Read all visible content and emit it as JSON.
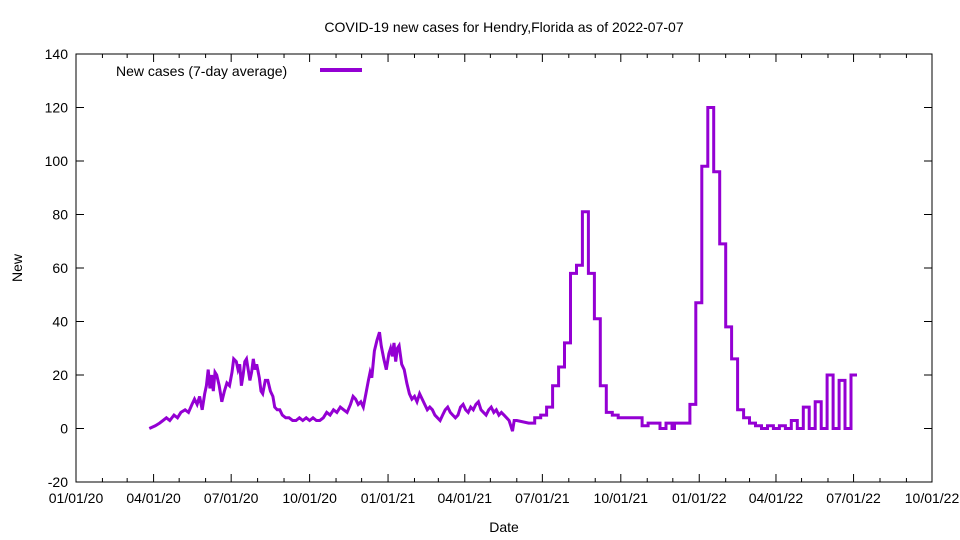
{
  "chart_data": {
    "type": "line",
    "title": "COVID-19 new cases for Hendry,Florida as of 2022-07-07",
    "xlabel": "Date",
    "ylabel": "New",
    "xlim": [
      "2020-01-01",
      "2022-10-01"
    ],
    "ylim": [
      -20,
      140
    ],
    "x_tick_labels": [
      "01/01/20",
      "04/01/20",
      "07/01/20",
      "10/01/20",
      "01/01/21",
      "04/01/21",
      "07/01/21",
      "10/01/21",
      "01/01/22",
      "04/01/22",
      "07/01/22",
      "10/01/22"
    ],
    "y_tick_labels": [
      "-20",
      "0",
      "20",
      "40",
      "60",
      "80",
      "100",
      "120",
      "140"
    ],
    "legend_position": "top-left",
    "grid": false,
    "series": [
      {
        "name": "New cases (7-day average)",
        "color": "#9400d3",
        "points": [
          [
            "2020-03-27",
            0
          ],
          [
            "2020-04-03",
            1
          ],
          [
            "2020-04-08",
            2
          ],
          [
            "2020-04-12",
            3
          ],
          [
            "2020-04-16",
            4
          ],
          [
            "2020-04-20",
            3
          ],
          [
            "2020-04-25",
            5
          ],
          [
            "2020-04-29",
            4
          ],
          [
            "2020-05-03",
            6
          ],
          [
            "2020-05-08",
            7
          ],
          [
            "2020-05-12",
            6
          ],
          [
            "2020-05-16",
            9
          ],
          [
            "2020-05-19",
            11
          ],
          [
            "2020-05-22",
            9
          ],
          [
            "2020-05-25",
            12
          ],
          [
            "2020-05-28",
            7
          ],
          [
            "2020-05-31",
            13
          ],
          [
            "2020-06-02",
            16
          ],
          [
            "2020-06-04",
            22
          ],
          [
            "2020-06-06",
            15
          ],
          [
            "2020-06-08",
            20
          ],
          [
            "2020-06-10",
            14
          ],
          [
            "2020-06-12",
            21
          ],
          [
            "2020-06-14",
            20
          ],
          [
            "2020-06-17",
            16
          ],
          [
            "2020-06-20",
            10
          ],
          [
            "2020-06-23",
            14
          ],
          [
            "2020-06-26",
            17
          ],
          [
            "2020-06-29",
            16
          ],
          [
            "2020-07-02",
            21
          ],
          [
            "2020-07-04",
            26
          ],
          [
            "2020-07-07",
            25
          ],
          [
            "2020-07-09",
            22
          ],
          [
            "2020-07-11",
            24
          ],
          [
            "2020-07-13",
            16
          ],
          [
            "2020-07-15",
            20
          ],
          [
            "2020-07-17",
            25
          ],
          [
            "2020-07-19",
            26
          ],
          [
            "2020-07-21",
            22
          ],
          [
            "2020-07-23",
            18
          ],
          [
            "2020-07-25",
            21
          ],
          [
            "2020-07-27",
            26
          ],
          [
            "2020-07-29",
            22
          ],
          [
            "2020-07-31",
            24
          ],
          [
            "2020-08-03",
            19
          ],
          [
            "2020-08-05",
            14
          ],
          [
            "2020-08-07",
            13
          ],
          [
            "2020-08-10",
            18
          ],
          [
            "2020-08-13",
            18
          ],
          [
            "2020-08-16",
            14
          ],
          [
            "2020-08-19",
            12
          ],
          [
            "2020-08-21",
            8
          ],
          [
            "2020-08-24",
            7
          ],
          [
            "2020-08-27",
            7
          ],
          [
            "2020-08-30",
            5
          ],
          [
            "2020-09-03",
            4
          ],
          [
            "2020-09-07",
            4
          ],
          [
            "2020-09-11",
            3
          ],
          [
            "2020-09-15",
            3
          ],
          [
            "2020-09-19",
            4
          ],
          [
            "2020-09-23",
            3
          ],
          [
            "2020-09-27",
            4
          ],
          [
            "2020-10-01",
            3
          ],
          [
            "2020-10-05",
            4
          ],
          [
            "2020-10-09",
            3
          ],
          [
            "2020-10-13",
            3
          ],
          [
            "2020-10-17",
            4
          ],
          [
            "2020-10-21",
            6
          ],
          [
            "2020-10-25",
            5
          ],
          [
            "2020-10-29",
            7
          ],
          [
            "2020-11-02",
            6
          ],
          [
            "2020-11-06",
            8
          ],
          [
            "2020-11-10",
            7
          ],
          [
            "2020-11-14",
            6
          ],
          [
            "2020-11-18",
            9
          ],
          [
            "2020-11-21",
            12
          ],
          [
            "2020-11-24",
            11
          ],
          [
            "2020-11-27",
            9
          ],
          [
            "2020-11-30",
            10
          ],
          [
            "2020-12-03",
            8
          ],
          [
            "2020-12-06",
            13
          ],
          [
            "2020-12-09",
            18
          ],
          [
            "2020-12-11",
            21
          ],
          [
            "2020-12-13",
            19
          ],
          [
            "2020-12-16",
            29
          ],
          [
            "2020-12-19",
            33
          ],
          [
            "2020-12-22",
            36
          ],
          [
            "2020-12-24",
            31
          ],
          [
            "2020-12-27",
            26
          ],
          [
            "2020-12-30",
            22
          ],
          [
            "2021-01-02",
            28
          ],
          [
            "2021-01-04",
            30
          ],
          [
            "2021-01-06",
            27
          ],
          [
            "2021-01-08",
            32
          ],
          [
            "2021-01-10",
            25
          ],
          [
            "2021-01-12",
            30
          ],
          [
            "2021-01-14",
            31
          ],
          [
            "2021-01-17",
            24
          ],
          [
            "2021-01-20",
            22
          ],
          [
            "2021-01-23",
            17
          ],
          [
            "2021-01-26",
            13
          ],
          [
            "2021-01-29",
            11
          ],
          [
            "2021-02-01",
            12
          ],
          [
            "2021-02-04",
            10
          ],
          [
            "2021-02-07",
            13
          ],
          [
            "2021-02-10",
            11
          ],
          [
            "2021-02-13",
            9
          ],
          [
            "2021-02-16",
            7
          ],
          [
            "2021-02-19",
            8
          ],
          [
            "2021-02-22",
            7
          ],
          [
            "2021-02-25",
            5
          ],
          [
            "2021-02-28",
            4
          ],
          [
            "2021-03-03",
            3
          ],
          [
            "2021-03-06",
            5
          ],
          [
            "2021-03-09",
            7
          ],
          [
            "2021-03-12",
            8
          ],
          [
            "2021-03-15",
            6
          ],
          [
            "2021-03-18",
            5
          ],
          [
            "2021-03-21",
            4
          ],
          [
            "2021-03-24",
            5
          ],
          [
            "2021-03-27",
            8
          ],
          [
            "2021-03-30",
            9
          ],
          [
            "2021-04-02",
            7
          ],
          [
            "2021-04-05",
            6
          ],
          [
            "2021-04-08",
            8
          ],
          [
            "2021-04-11",
            7
          ],
          [
            "2021-04-14",
            9
          ],
          [
            "2021-04-17",
            10
          ],
          [
            "2021-04-20",
            7
          ],
          [
            "2021-04-23",
            6
          ],
          [
            "2021-04-26",
            5
          ],
          [
            "2021-04-29",
            7
          ],
          [
            "2021-05-02",
            8
          ],
          [
            "2021-05-05",
            6
          ],
          [
            "2021-05-08",
            7
          ],
          [
            "2021-05-11",
            5
          ],
          [
            "2021-05-14",
            6
          ],
          [
            "2021-05-17",
            5
          ],
          [
            "2021-05-20",
            4
          ],
          [
            "2021-05-23",
            3
          ],
          [
            "2021-05-25",
            1
          ],
          [
            "2021-05-27",
            -1
          ],
          [
            "2021-05-29",
            3
          ],
          [
            "2021-06-01",
            3
          ],
          [
            "2021-06-15",
            2
          ],
          [
            "2021-06-22",
            2
          ],
          [
            "2021-06-22",
            4
          ],
          [
            "2021-06-29",
            4
          ],
          [
            "2021-06-29",
            5
          ],
          [
            "2021-07-06",
            5
          ],
          [
            "2021-07-06",
            8
          ],
          [
            "2021-07-13",
            8
          ],
          [
            "2021-07-13",
            16
          ],
          [
            "2021-07-20",
            16
          ],
          [
            "2021-07-20",
            23
          ],
          [
            "2021-07-27",
            23
          ],
          [
            "2021-07-27",
            32
          ],
          [
            "2021-08-03",
            32
          ],
          [
            "2021-08-03",
            58
          ],
          [
            "2021-08-10",
            58
          ],
          [
            "2021-08-10",
            61
          ],
          [
            "2021-08-17",
            61
          ],
          [
            "2021-08-17",
            81
          ],
          [
            "2021-08-24",
            81
          ],
          [
            "2021-08-24",
            58
          ],
          [
            "2021-08-31",
            58
          ],
          [
            "2021-08-31",
            41
          ],
          [
            "2021-09-07",
            41
          ],
          [
            "2021-09-07",
            16
          ],
          [
            "2021-09-14",
            16
          ],
          [
            "2021-09-14",
            6
          ],
          [
            "2021-09-21",
            6
          ],
          [
            "2021-09-21",
            5
          ],
          [
            "2021-09-28",
            5
          ],
          [
            "2021-09-28",
            4
          ],
          [
            "2021-10-05",
            4
          ],
          [
            "2021-10-05",
            4
          ],
          [
            "2021-10-26",
            4
          ],
          [
            "2021-10-26",
            1
          ],
          [
            "2021-11-02",
            1
          ],
          [
            "2021-11-02",
            2
          ],
          [
            "2021-11-16",
            2
          ],
          [
            "2021-11-16",
            0
          ],
          [
            "2021-11-23",
            0
          ],
          [
            "2021-11-23",
            2
          ],
          [
            "2021-11-30",
            2
          ],
          [
            "2021-11-30",
            0
          ],
          [
            "2021-12-03",
            0
          ],
          [
            "2021-12-03",
            2
          ],
          [
            "2021-12-21",
            2
          ],
          [
            "2021-12-21",
            9
          ],
          [
            "2021-12-28",
            9
          ],
          [
            "2021-12-28",
            47
          ],
          [
            "2022-01-04",
            47
          ],
          [
            "2022-01-04",
            98
          ],
          [
            "2022-01-11",
            98
          ],
          [
            "2022-01-11",
            120
          ],
          [
            "2022-01-18",
            120
          ],
          [
            "2022-01-18",
            96
          ],
          [
            "2022-01-25",
            96
          ],
          [
            "2022-01-25",
            69
          ],
          [
            "2022-02-01",
            69
          ],
          [
            "2022-02-01",
            38
          ],
          [
            "2022-02-08",
            38
          ],
          [
            "2022-02-08",
            26
          ],
          [
            "2022-02-15",
            26
          ],
          [
            "2022-02-15",
            7
          ],
          [
            "2022-02-22",
            7
          ],
          [
            "2022-02-22",
            4
          ],
          [
            "2022-03-01",
            4
          ],
          [
            "2022-03-01",
            2
          ],
          [
            "2022-03-08",
            2
          ],
          [
            "2022-03-08",
            1
          ],
          [
            "2022-03-15",
            1
          ],
          [
            "2022-03-15",
            0
          ],
          [
            "2022-03-22",
            0
          ],
          [
            "2022-03-22",
            1
          ],
          [
            "2022-03-29",
            1
          ],
          [
            "2022-03-29",
            0
          ],
          [
            "2022-04-05",
            0
          ],
          [
            "2022-04-05",
            1
          ],
          [
            "2022-04-12",
            1
          ],
          [
            "2022-04-12",
            0
          ],
          [
            "2022-04-19",
            0
          ],
          [
            "2022-04-19",
            3
          ],
          [
            "2022-04-26",
            3
          ],
          [
            "2022-04-26",
            0
          ],
          [
            "2022-05-03",
            0
          ],
          [
            "2022-05-03",
            8
          ],
          [
            "2022-05-10",
            8
          ],
          [
            "2022-05-10",
            0
          ],
          [
            "2022-05-17",
            0
          ],
          [
            "2022-05-17",
            10
          ],
          [
            "2022-05-24",
            10
          ],
          [
            "2022-05-24",
            0
          ],
          [
            "2022-05-31",
            0
          ],
          [
            "2022-05-31",
            20
          ],
          [
            "2022-06-07",
            20
          ],
          [
            "2022-06-07",
            0
          ],
          [
            "2022-06-14",
            0
          ],
          [
            "2022-06-14",
            18
          ],
          [
            "2022-06-21",
            18
          ],
          [
            "2022-06-21",
            0
          ],
          [
            "2022-06-28",
            0
          ],
          [
            "2022-06-28",
            20
          ],
          [
            "2022-07-05",
            20
          ]
        ]
      }
    ]
  }
}
